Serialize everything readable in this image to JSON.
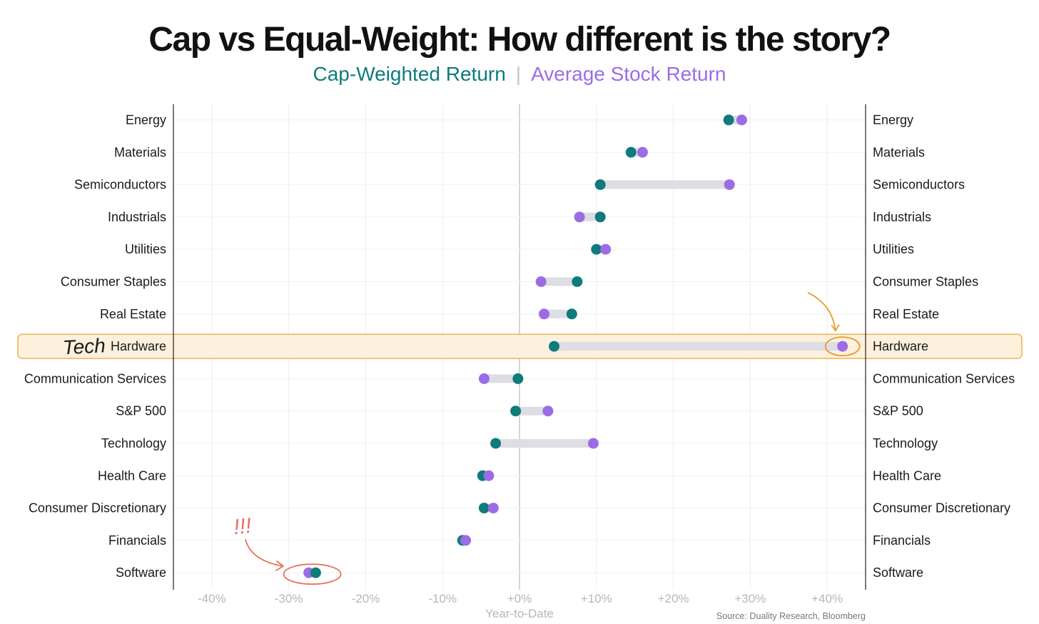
{
  "title": "Cap vs Equal-Weight: How different is the story?",
  "legend": {
    "cap_label": "Cap-Weighted Return",
    "separator": "|",
    "avg_label": "Average Stock Return"
  },
  "colors": {
    "cap": "#0e7c7b",
    "avg": "#9b6ce6",
    "connector": "#dedde3",
    "highlight_fill": "#fdf0dc",
    "highlight_stroke": "#e8a93a",
    "annotation_red": "#e8705f",
    "annotation_orange": "#e89a2c"
  },
  "annotations": {
    "highlight_note": "Tech",
    "exclaim_note": "!!!"
  },
  "source": "Source: Duality Research, Bloomberg",
  "chart_data": {
    "type": "dumbbell",
    "xlabel": "Year-to-Date",
    "xlim": [
      -45,
      45
    ],
    "x_ticks": [
      -40,
      -30,
      -20,
      -10,
      0,
      10,
      20,
      30,
      40
    ],
    "x_tick_labels": [
      "-40%",
      "-30%",
      "-20%",
      "-10%",
      "+0%",
      "+10%",
      "+20%",
      "+30%",
      "+40%"
    ],
    "highlight_category": "Hardware",
    "series": [
      {
        "name": "Cap-Weighted Return",
        "values": [
          27.2,
          14.5,
          10.5,
          10.5,
          10.0,
          7.5,
          6.8,
          4.5,
          -0.2,
          -0.5,
          -3.1,
          -4.8,
          -4.6,
          -7.4,
          -26.5
        ]
      },
      {
        "name": "Average Stock Return",
        "values": [
          28.9,
          16.0,
          27.3,
          7.8,
          11.2,
          2.8,
          3.2,
          42.0,
          -4.6,
          3.7,
          9.6,
          -4.0,
          -3.4,
          -7.0,
          -27.4
        ]
      }
    ],
    "categories": [
      "Energy",
      "Materials",
      "Semiconductors",
      "Industrials",
      "Utilities",
      "Consumer Staples",
      "Real Estate",
      "Hardware",
      "Communication Services",
      "S&P 500",
      "Technology",
      "Health Care",
      "Consumer Discretionary",
      "Financials",
      "Software"
    ]
  }
}
